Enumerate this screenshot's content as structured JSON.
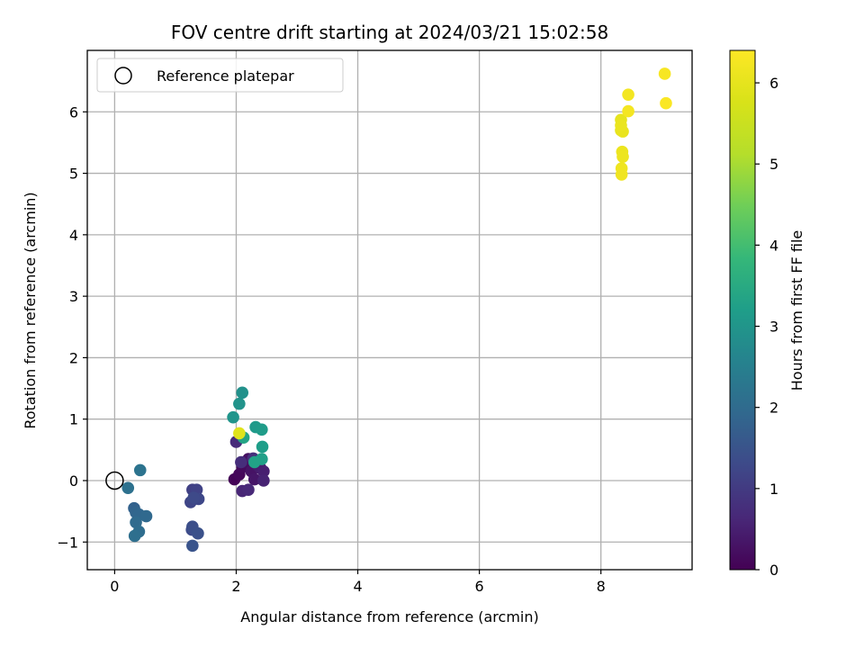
{
  "chart_data": {
    "type": "scatter",
    "title": "FOV centre drift starting at 2024/03/21 15:02:58",
    "xlabel": "Angular distance from reference (arcmin)",
    "ylabel": "Rotation from reference (arcmin)",
    "xlim": [
      -0.45,
      9.5
    ],
    "ylim": [
      -1.45,
      7.0
    ],
    "x_ticks": [
      0,
      2,
      4,
      6,
      8
    ],
    "x_tick_labels": [
      "0",
      "2",
      "4",
      "6",
      "8"
    ],
    "y_ticks": [
      -1,
      0,
      1,
      2,
      3,
      4,
      5,
      6
    ],
    "y_tick_labels": [
      "−1",
      "0",
      "1",
      "2",
      "3",
      "4",
      "5",
      "6"
    ],
    "grid": true,
    "legend": {
      "position": "upper-left",
      "entries": [
        "Reference platepar"
      ]
    },
    "reference_point": {
      "x": 0,
      "y": 0,
      "marker": "hollow-circle"
    },
    "colorbar": {
      "label": "Hours from first FF file",
      "colormap": "viridis",
      "range": [
        0,
        6.4
      ],
      "ticks": [
        0,
        1,
        2,
        3,
        4,
        5,
        6
      ],
      "tick_labels": [
        "0",
        "1",
        "2",
        "3",
        "4",
        "5",
        "6"
      ]
    },
    "points": [
      {
        "x": 1.97,
        "y": 0.02,
        "t": 0.05
      },
      {
        "x": 2.05,
        "y": 0.1,
        "t": 0.1
      },
      {
        "x": 2.1,
        "y": 0.22,
        "t": 0.15
      },
      {
        "x": 2.15,
        "y": 0.3,
        "t": 0.2
      },
      {
        "x": 2.2,
        "y": 0.35,
        "t": 0.25
      },
      {
        "x": 2.25,
        "y": 0.15,
        "t": 0.3
      },
      {
        "x": 2.3,
        "y": 0.02,
        "t": 0.35
      },
      {
        "x": 2.35,
        "y": 0.25,
        "t": 0.4
      },
      {
        "x": 2.4,
        "y": 0.2,
        "t": 0.45
      },
      {
        "x": 2.45,
        "y": 0.15,
        "t": 0.5
      },
      {
        "x": 2.45,
        "y": 0.0,
        "t": 0.55
      },
      {
        "x": 2.1,
        "y": -0.17,
        "t": 0.6
      },
      {
        "x": 2.2,
        "y": -0.15,
        "t": 0.65
      },
      {
        "x": 2.0,
        "y": 0.63,
        "t": 0.7
      },
      {
        "x": 2.08,
        "y": 0.3,
        "t": 0.75
      },
      {
        "x": 2.28,
        "y": 0.36,
        "t": 0.8
      },
      {
        "x": 1.28,
        "y": -0.15,
        "t": 1.1
      },
      {
        "x": 1.35,
        "y": -0.15,
        "t": 1.15
      },
      {
        "x": 1.25,
        "y": -0.35,
        "t": 1.2
      },
      {
        "x": 1.38,
        "y": -0.3,
        "t": 1.25
      },
      {
        "x": 1.3,
        "y": -0.28,
        "t": 1.3
      },
      {
        "x": 1.27,
        "y": -0.8,
        "t": 1.35
      },
      {
        "x": 1.28,
        "y": -0.75,
        "t": 1.4
      },
      {
        "x": 1.37,
        "y": -0.86,
        "t": 1.45
      },
      {
        "x": 1.28,
        "y": -1.06,
        "t": 1.5
      },
      {
        "x": 0.32,
        "y": -0.45,
        "t": 1.8
      },
      {
        "x": 0.35,
        "y": -0.52,
        "t": 1.85
      },
      {
        "x": 0.4,
        "y": -0.55,
        "t": 1.9
      },
      {
        "x": 0.52,
        "y": -0.58,
        "t": 1.95
      },
      {
        "x": 0.35,
        "y": -0.68,
        "t": 2.0
      },
      {
        "x": 0.4,
        "y": -0.83,
        "t": 2.05
      },
      {
        "x": 0.33,
        "y": -0.9,
        "t": 2.1
      },
      {
        "x": 0.22,
        "y": -0.12,
        "t": 2.15
      },
      {
        "x": 0.42,
        "y": 0.17,
        "t": 2.2
      },
      {
        "x": 2.1,
        "y": 1.43,
        "t": 2.9
      },
      {
        "x": 2.05,
        "y": 1.25,
        "t": 2.95
      },
      {
        "x": 1.95,
        "y": 1.03,
        "t": 3.0
      },
      {
        "x": 2.32,
        "y": 0.87,
        "t": 3.1
      },
      {
        "x": 2.42,
        "y": 0.83,
        "t": 3.15
      },
      {
        "x": 2.43,
        "y": 0.55,
        "t": 3.2
      },
      {
        "x": 2.42,
        "y": 0.35,
        "t": 3.25
      },
      {
        "x": 2.3,
        "y": 0.3,
        "t": 3.3
      },
      {
        "x": 2.12,
        "y": 0.7,
        "t": 3.35
      },
      {
        "x": 2.05,
        "y": 0.77,
        "t": 5.9
      },
      {
        "x": 8.33,
        "y": 5.87,
        "t": 6.0
      },
      {
        "x": 8.33,
        "y": 5.7,
        "t": 6.02
      },
      {
        "x": 8.36,
        "y": 5.68,
        "t": 6.05
      },
      {
        "x": 8.33,
        "y": 5.78,
        "t": 6.08
      },
      {
        "x": 8.35,
        "y": 5.35,
        "t": 6.1
      },
      {
        "x": 8.36,
        "y": 5.27,
        "t": 6.12
      },
      {
        "x": 8.34,
        "y": 5.08,
        "t": 6.15
      },
      {
        "x": 8.34,
        "y": 4.98,
        "t": 6.18
      },
      {
        "x": 8.45,
        "y": 6.28,
        "t": 6.22
      },
      {
        "x": 8.45,
        "y": 6.01,
        "t": 6.25
      },
      {
        "x": 9.05,
        "y": 6.62,
        "t": 6.3
      },
      {
        "x": 9.07,
        "y": 6.14,
        "t": 6.35
      }
    ]
  }
}
